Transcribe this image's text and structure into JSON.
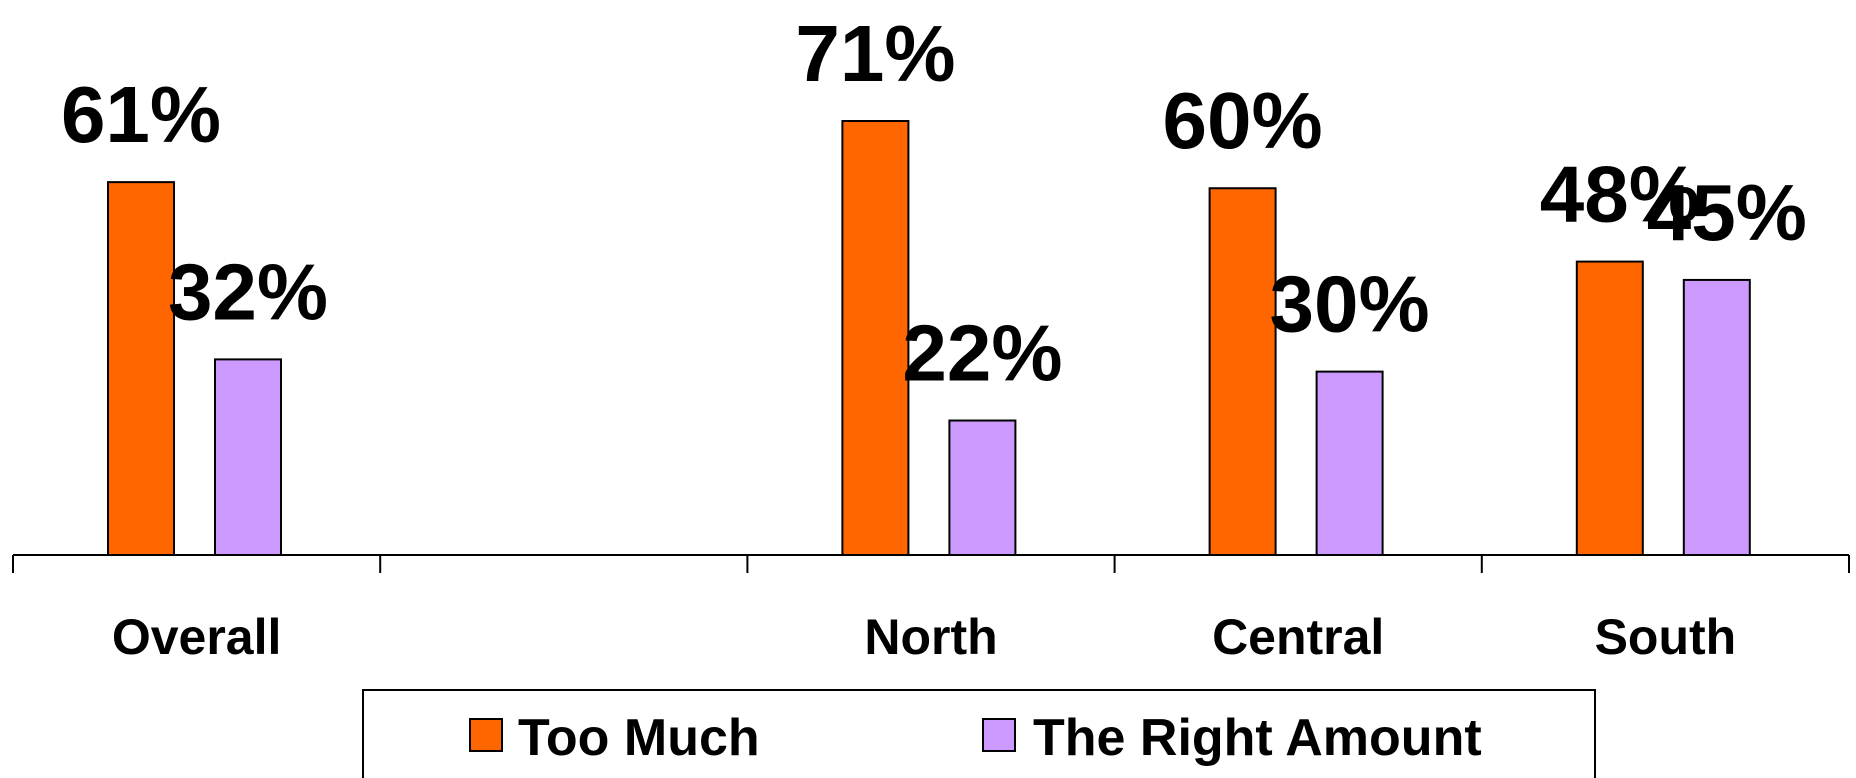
{
  "chart_data": {
    "type": "bar",
    "categories": [
      "Overall",
      "",
      "North",
      "Central",
      "South"
    ],
    "series": [
      {
        "name": "Too Much",
        "color": "#FF6600",
        "values": [
          61,
          null,
          71,
          60,
          48
        ],
        "labels": [
          "61%",
          "",
          "71%",
          "60%",
          "48%"
        ]
      },
      {
        "name": "The Right Amount",
        "color": "#CC99FF",
        "values": [
          32,
          null,
          22,
          30,
          45
        ],
        "labels": [
          "32%",
          "",
          "22%",
          "30%",
          "45%"
        ]
      }
    ],
    "ylim": [
      0,
      71
    ],
    "grid": false,
    "legend": "bottom"
  }
}
